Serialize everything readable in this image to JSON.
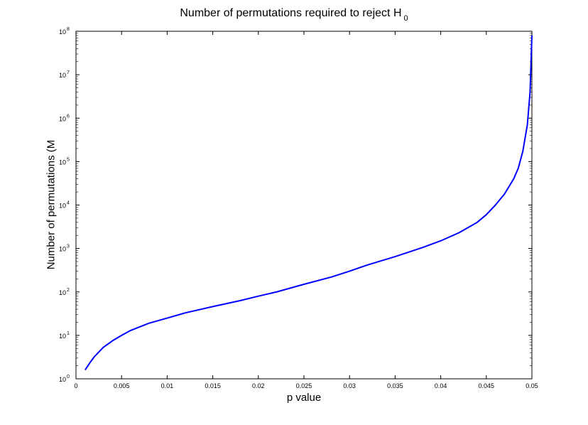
{
  "colors": {
    "line": "#0000ff",
    "axes": "#000000",
    "background": "#ffffff"
  },
  "chart_data": {
    "type": "line",
    "title": "Number of permutations required to reject H",
    "title_subscript": "0",
    "xlabel": "p value",
    "ylabel": "Number of permutations (M",
    "xlim": [
      0,
      0.05
    ],
    "ylim": [
      1,
      100000000
    ],
    "yscale": "log",
    "grid": false,
    "x_ticks": [
      0,
      0.005,
      0.01,
      0.015,
      0.02,
      0.025,
      0.03,
      0.035,
      0.04,
      0.045,
      0.05
    ],
    "x_tick_labels": [
      "0",
      "0.005",
      "0.01",
      "0.015",
      "0.02",
      "0.025",
      "0.03",
      "0.035",
      "0.04",
      "0.045",
      "0.05"
    ],
    "y_tick_bases": [
      "10",
      "10",
      "10",
      "10",
      "10",
      "10",
      "10",
      "10",
      "10"
    ],
    "y_tick_exponents": [
      "0",
      "1",
      "2",
      "3",
      "4",
      "5",
      "6",
      "7",
      "8"
    ],
    "series": [
      {
        "x": [
          0.001,
          0.0015,
          0.002,
          0.003,
          0.004,
          0.005,
          0.006,
          0.008,
          0.01,
          0.012,
          0.015,
          0.018,
          0.02,
          0.022,
          0.025,
          0.028,
          0.03,
          0.032,
          0.035,
          0.038,
          0.04,
          0.042,
          0.044,
          0.045,
          0.046,
          0.047,
          0.048,
          0.0485,
          0.049,
          0.0495,
          0.0498,
          0.05
        ],
        "y": [
          1.6,
          2.3,
          3.2,
          5.3,
          7.5,
          10,
          13,
          19,
          25,
          33,
          46,
          63,
          80,
          100,
          150,
          220,
          300,
          420,
          650,
          1050,
          1500,
          2300,
          4000,
          6000,
          10000,
          18000,
          40000,
          70000,
          170000,
          700000,
          4000000,
          80000000
        ]
      }
    ]
  }
}
